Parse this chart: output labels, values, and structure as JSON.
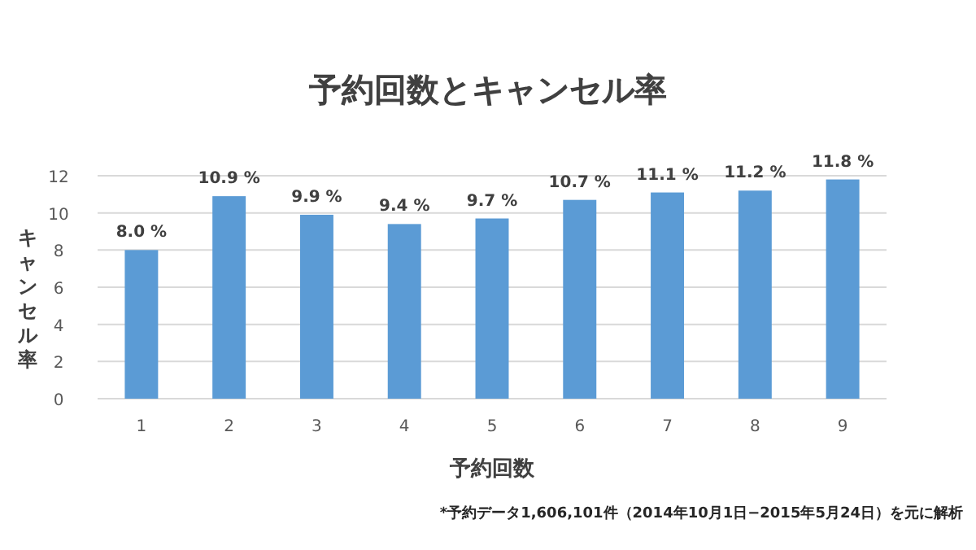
{
  "chart_data": {
    "type": "bar",
    "title": "予約回数とキャンセル率",
    "xlabel": "予約回数",
    "ylabel": "キャンセル率",
    "categories": [
      "1",
      "2",
      "3",
      "4",
      "5",
      "6",
      "7",
      "8",
      "9"
    ],
    "values": [
      8.0,
      10.9,
      9.9,
      9.4,
      9.7,
      10.7,
      11.1,
      11.2,
      11.8
    ],
    "value_labels": [
      "8.0 %",
      "10.9 %",
      "9.9 %",
      "9.4 %",
      "9.7 %",
      "10.7 %",
      "11.1 %",
      "11.2 %",
      "11.8 %"
    ],
    "color": "#5b9bd5",
    "ylim": [
      0,
      12
    ],
    "yticks": [
      0,
      2,
      4,
      6,
      8,
      10,
      12
    ],
    "grid": "y",
    "annotations": [
      "*予約データ1,606,101件（2014年10月1日−2015年5月24日）を元に解析"
    ]
  }
}
